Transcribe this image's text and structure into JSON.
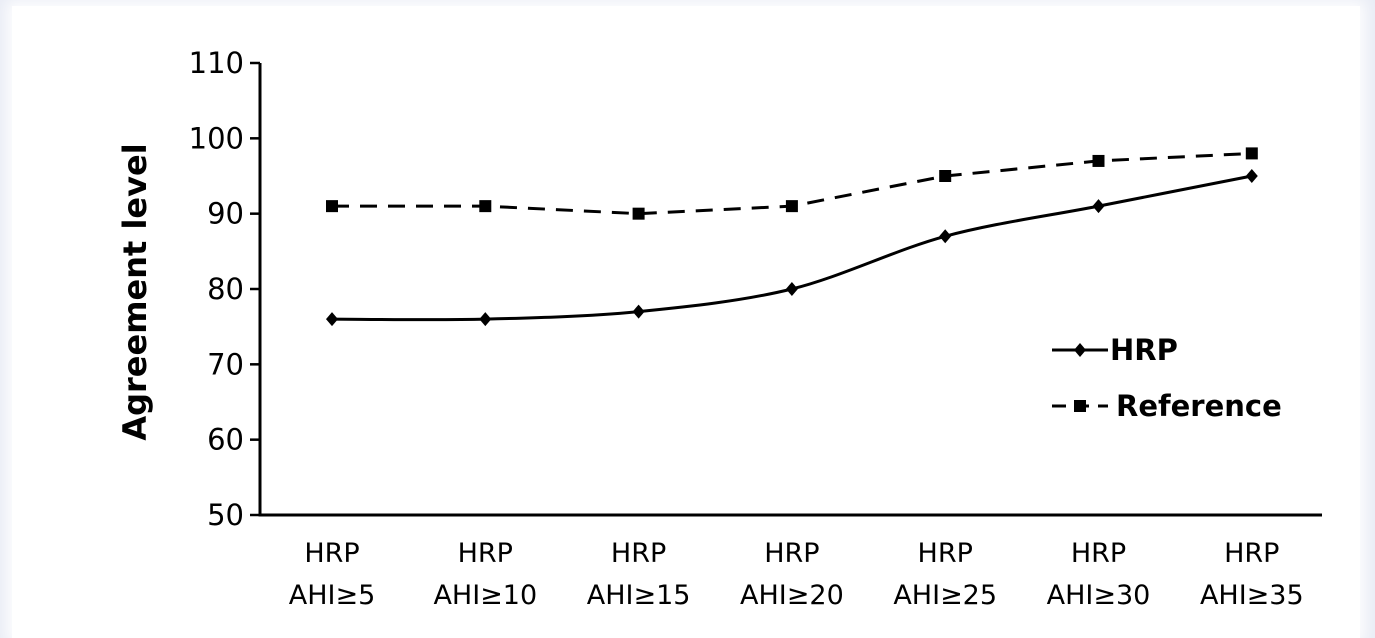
{
  "chart_data": {
    "type": "line",
    "title": "",
    "ylabel": "Agreement level",
    "xlabel": "",
    "ylim": [
      50,
      110
    ],
    "yticks": [
      50,
      60,
      70,
      80,
      90,
      100,
      110
    ],
    "categories": [
      [
        "HRP",
        "AHI≥5"
      ],
      [
        "HRP",
        "AHI≥10"
      ],
      [
        "HRP",
        "AHI≥15"
      ],
      [
        "HRP",
        "AHI≥20"
      ],
      [
        "HRP",
        "AHI≥25"
      ],
      [
        "HRP",
        "AHI≥30"
      ],
      [
        "HRP",
        "AHI≥35"
      ]
    ],
    "series": [
      {
        "name": "HRP",
        "values": [
          76,
          76,
          77,
          80,
          87,
          91,
          95
        ],
        "style": "solid",
        "marker": "diamond",
        "color": "#000000"
      },
      {
        "name": "Reference",
        "values": [
          91,
          91,
          90,
          91,
          95,
          97,
          98
        ],
        "style": "dashed",
        "marker": "square",
        "color": "#000000"
      }
    ],
    "legend": "right",
    "grid": false
  }
}
